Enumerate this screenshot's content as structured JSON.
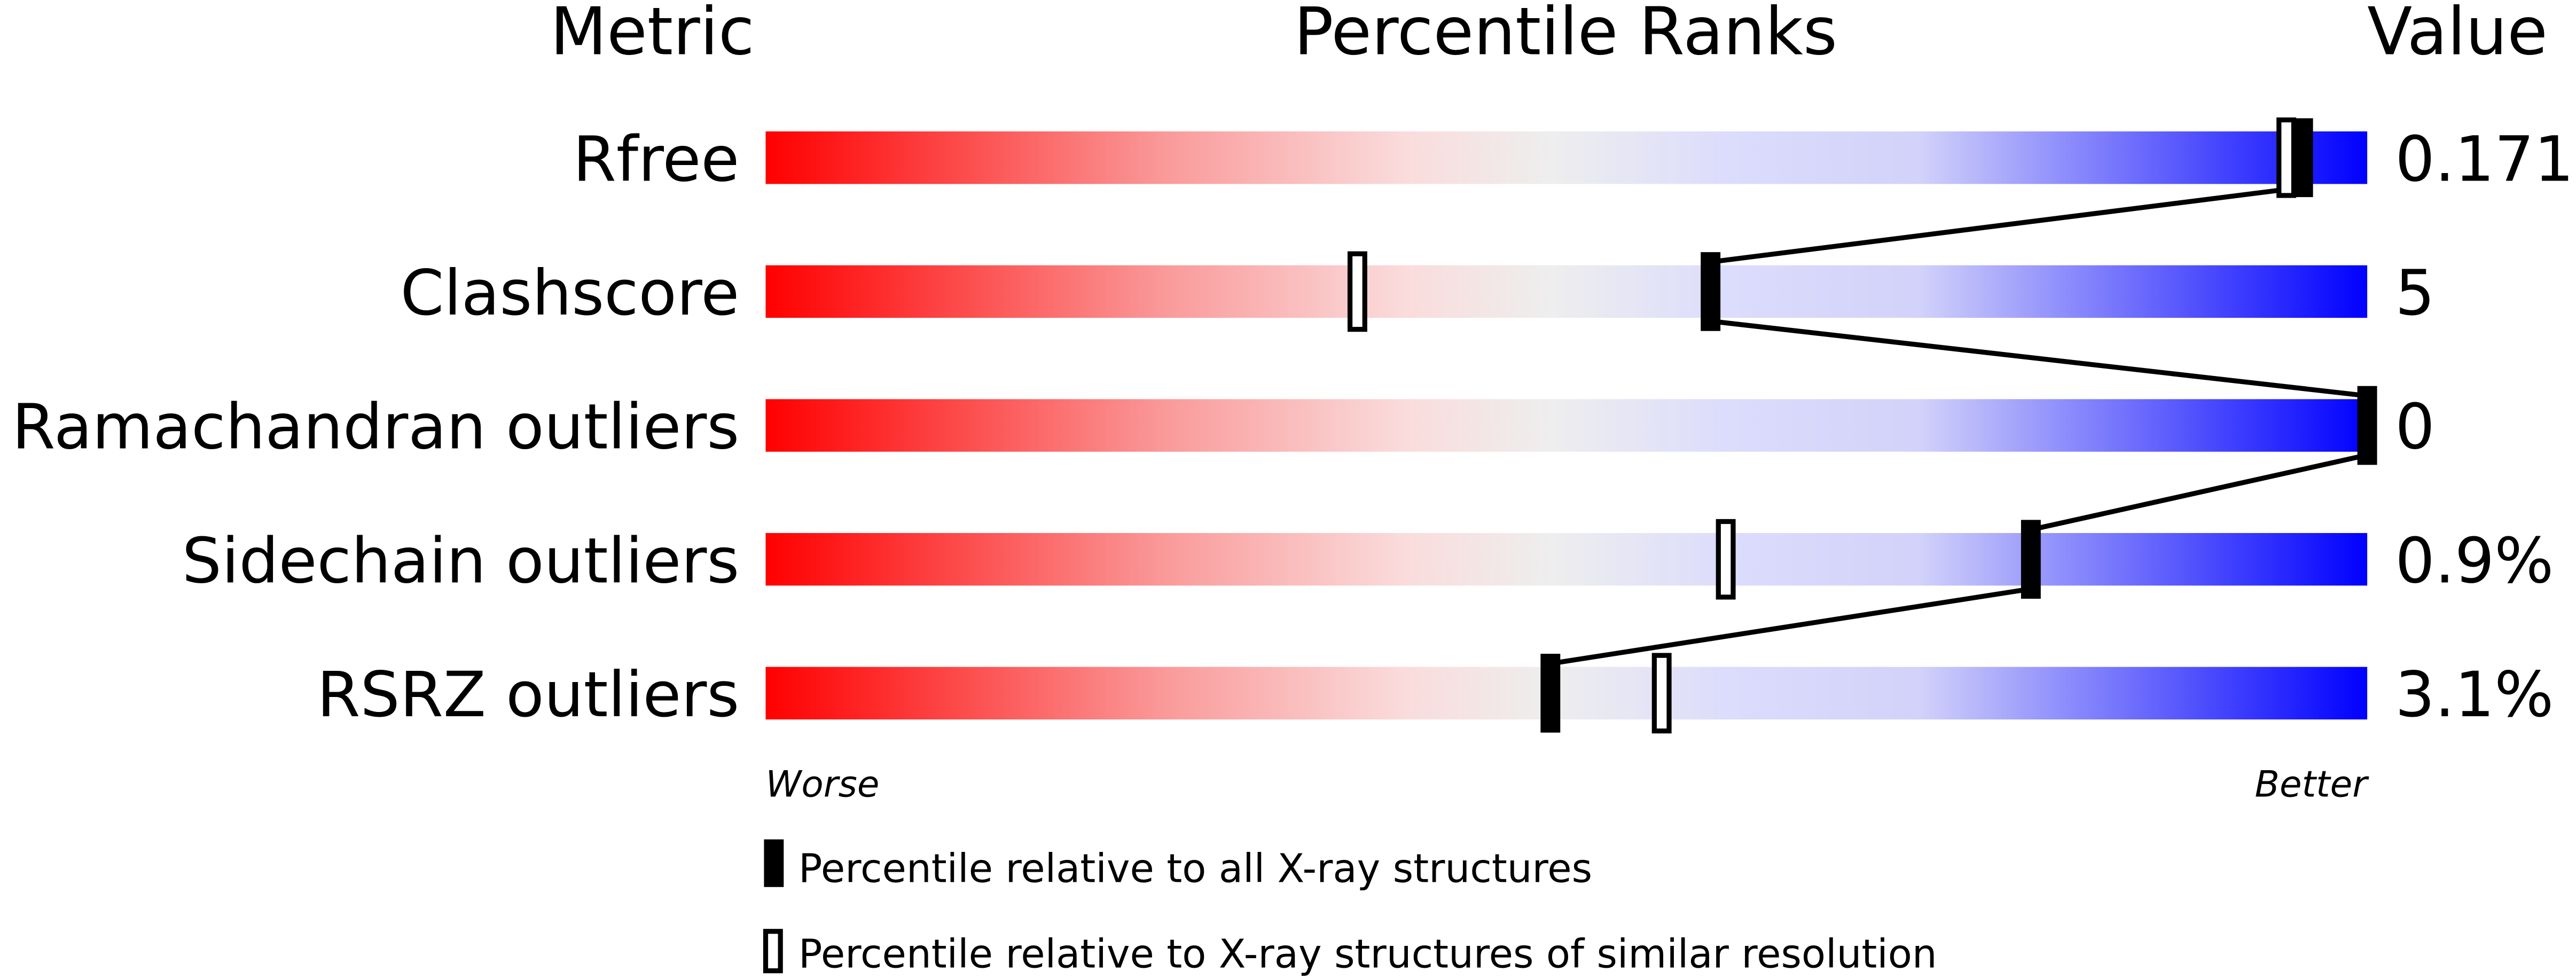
{
  "headers": {
    "metric": "Metric",
    "percentile": "Percentile Ranks",
    "value": "Value"
  },
  "axis": {
    "worse": "Worse",
    "better": "Better"
  },
  "legend": {
    "all": "Percentile relative to all X-ray structures",
    "similar": "Percentile relative to X-ray structures of similar resolution"
  },
  "colors": {
    "worse": "#ff0000",
    "middle": "#eeeeee",
    "better": "#0000ff",
    "marker": "#000000"
  },
  "chart_data": {
    "type": "bar",
    "title": "",
    "xlim": [
      0,
      100
    ],
    "categories": [
      "Rfree",
      "Clashscore",
      "Ramachandran outliers",
      "Sidechain outliers",
      "RSRZ outliers"
    ],
    "values_text": [
      "0.171",
      "5",
      "0",
      "0.9%",
      "3.1%"
    ],
    "series": [
      {
        "name": "Percentile relative to all X-ray structures",
        "values": [
          96,
          59,
          100,
          79,
          49
        ]
      },
      {
        "name": "Percentile relative to X-ray structures of similar resolution",
        "values": [
          95,
          37,
          null,
          60,
          56
        ]
      }
    ]
  }
}
